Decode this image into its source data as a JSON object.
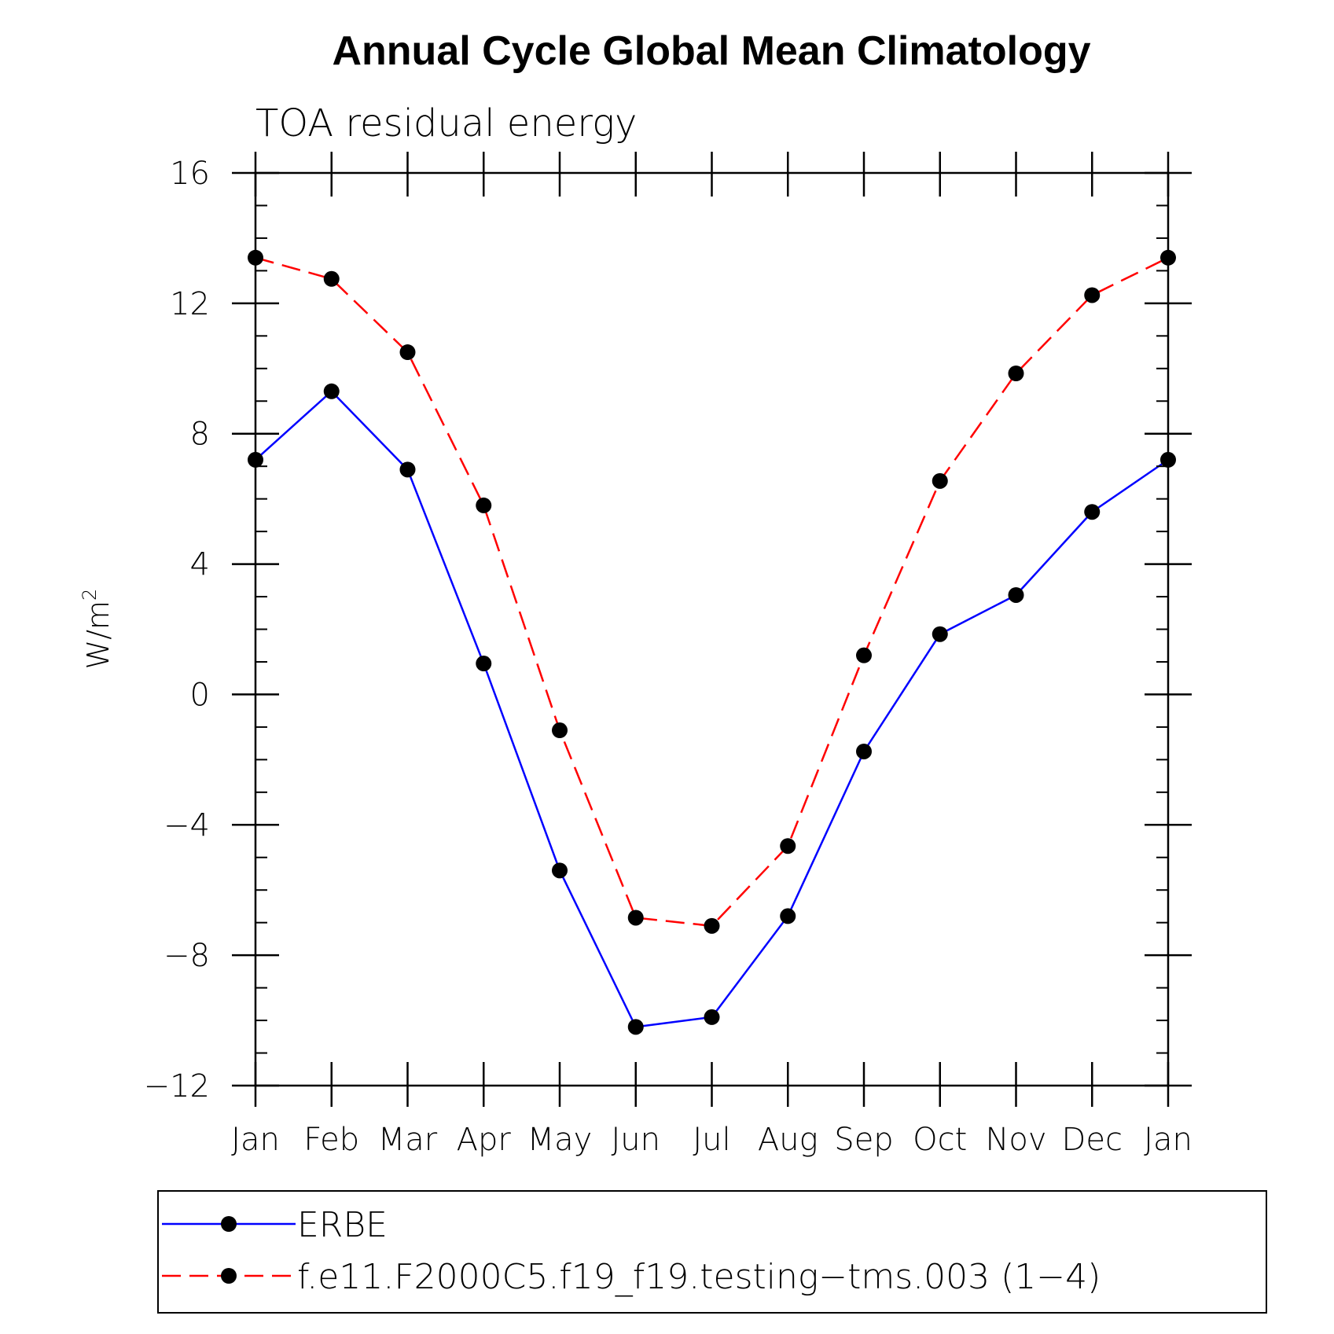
{
  "chart_data": {
    "type": "line",
    "title": "Annual Cycle Global Mean Climatology",
    "subtitle": "TOA residual energy",
    "ylabel": "W/m",
    "ylabel_superscript": "2",
    "categories": [
      "Jan",
      "Feb",
      "Mar",
      "Apr",
      "May",
      "Jun",
      "Jul",
      "Aug",
      "Sep",
      "Oct",
      "Nov",
      "Dec",
      "Jan"
    ],
    "ylim": [
      -12,
      16
    ],
    "yticks": [
      -12,
      -8,
      -4,
      0,
      4,
      8,
      12,
      16
    ],
    "ytick_labels": [
      "−12",
      "−8",
      "−4",
      "0",
      "4",
      "8",
      "12",
      "16"
    ],
    "grid": false,
    "legend_position": "bottom",
    "series": [
      {
        "name": "ERBE",
        "color": "#0000ff",
        "dash": "solid",
        "marker": "filled-circle",
        "values": [
          7.2,
          9.3,
          6.9,
          0.95,
          -5.4,
          -10.2,
          -9.9,
          -6.8,
          -1.75,
          1.85,
          3.05,
          5.6,
          7.2
        ]
      },
      {
        "name": "f.e11.F2000C5.f19_f19.testing−tms.003 (1−4)",
        "color": "#ff0000",
        "dash": "dashed",
        "marker": "filled-circle",
        "values": [
          13.4,
          12.75,
          10.5,
          5.8,
          -1.1,
          -6.85,
          -7.1,
          -4.65,
          1.2,
          6.55,
          9.85,
          12.25,
          13.4
        ]
      }
    ]
  }
}
